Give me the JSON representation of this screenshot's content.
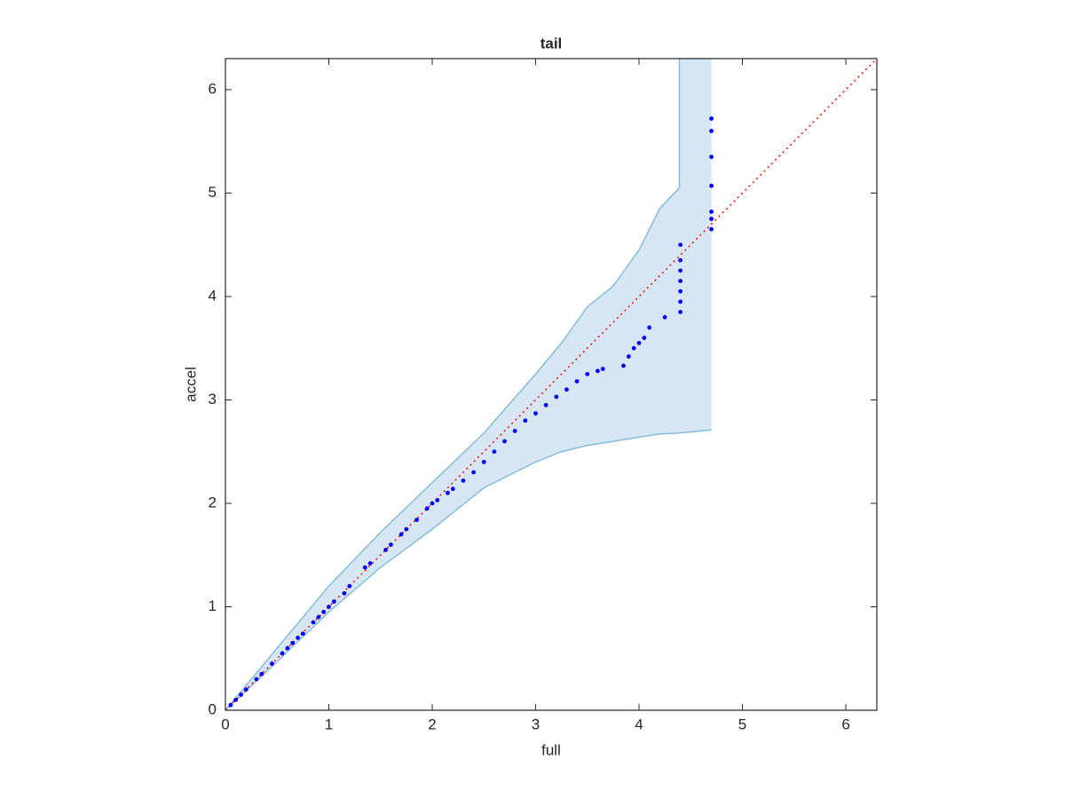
{
  "chart_data": {
    "type": "scatter",
    "title": "tail",
    "xlabel": "full",
    "ylabel": "accel",
    "xlim": [
      0,
      6.3
    ],
    "ylim": [
      0,
      6.3
    ],
    "xticks": [
      0,
      1,
      2,
      3,
      4,
      5,
      6
    ],
    "yticks": [
      0,
      1,
      2,
      3,
      4,
      5,
      6
    ],
    "color": "#0000ff",
    "x": [
      0.05,
      0.1,
      0.15,
      0.2,
      0.3,
      0.35,
      0.45,
      0.55,
      0.6,
      0.65,
      0.7,
      0.75,
      0.85,
      0.9,
      0.95,
      1.0,
      1.05,
      1.15,
      1.2,
      1.35,
      1.4,
      1.55,
      1.6,
      1.7,
      1.75,
      1.85,
      1.95,
      2.0,
      2.05,
      2.15,
      2.2,
      2.3,
      2.4,
      2.5,
      2.6,
      2.7,
      2.8,
      2.9,
      3.0,
      3.1,
      3.2,
      3.3,
      3.4,
      3.5,
      3.6,
      3.65,
      3.85,
      3.9,
      3.95,
      4.0,
      4.05,
      4.1,
      4.25,
      4.4,
      4.4,
      4.4,
      4.4,
      4.4,
      4.4,
      4.4,
      4.7,
      4.7,
      4.7,
      4.7,
      4.7,
      4.7,
      4.7
    ],
    "y": [
      0.05,
      0.1,
      0.15,
      0.2,
      0.3,
      0.35,
      0.45,
      0.55,
      0.6,
      0.65,
      0.7,
      0.74,
      0.85,
      0.9,
      0.95,
      1.0,
      1.05,
      1.13,
      1.2,
      1.38,
      1.42,
      1.55,
      1.6,
      1.7,
      1.75,
      1.84,
      1.95,
      2.0,
      2.03,
      2.1,
      2.14,
      2.22,
      2.3,
      2.4,
      2.5,
      2.6,
      2.7,
      2.8,
      2.87,
      2.95,
      3.03,
      3.1,
      3.18,
      3.25,
      3.28,
      3.3,
      3.33,
      3.42,
      3.5,
      3.55,
      3.6,
      3.7,
      3.8,
      3.85,
      3.95,
      4.05,
      4.15,
      4.25,
      4.35,
      4.5,
      4.65,
      4.75,
      4.82,
      5.07,
      5.35,
      5.6,
      5.72
    ],
    "band": {
      "fill": "#d6e7f3",
      "edge": "#86bbdb",
      "x": [
        0,
        0.5,
        1,
        1.5,
        2,
        2.5,
        3,
        3.25,
        3.5,
        3.75,
        4.0,
        4.2,
        4.39,
        4.39,
        4.7
      ],
      "upper": [
        0,
        0.6,
        1.2,
        1.72,
        2.2,
        2.68,
        3.25,
        3.55,
        3.9,
        4.1,
        4.45,
        4.85,
        5.05,
        6.3,
        6.3
      ],
      "lower": [
        0,
        0.47,
        0.95,
        1.38,
        1.75,
        2.15,
        2.4,
        2.5,
        2.56,
        2.6,
        2.64,
        2.67,
        2.68,
        2.68,
        2.71
      ]
    },
    "reference_line": {
      "color": "#ff0000",
      "x": [
        0,
        6.3
      ],
      "y": [
        0,
        6.3
      ]
    }
  }
}
